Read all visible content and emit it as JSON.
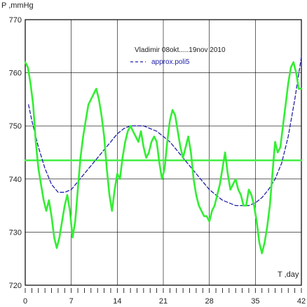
{
  "chart_data": {
    "type": "line",
    "title": "",
    "xlabel": "T ,day",
    "ylabel": "P ,mmHg",
    "xlim": [
      0,
      42
    ],
    "ylim": [
      720,
      770
    ],
    "x_ticks": [
      0,
      7,
      14,
      21,
      28,
      35,
      42
    ],
    "y_ticks": [
      720,
      730,
      740,
      750,
      760,
      770
    ],
    "grid": true,
    "legend_position": "top-right",
    "annotations": [
      "Vladimir 08okt.....19nov 2010"
    ],
    "series": [
      {
        "name": "",
        "style": "solid",
        "color": "#33ee33",
        "x": [
          0,
          0.4,
          0.8,
          1.2,
          1.6,
          2.0,
          2.4,
          2.8,
          3.2,
          3.6,
          4.0,
          4.4,
          4.8,
          5.2,
          5.6,
          6.0,
          6.4,
          6.8,
          7.2,
          7.6,
          8.0,
          8.4,
          8.8,
          9.2,
          9.6,
          10.0,
          10.4,
          10.8,
          11.2,
          11.6,
          12.0,
          12.4,
          12.8,
          13.2,
          13.6,
          14.0,
          14.4,
          14.8,
          15.2,
          15.6,
          16.0,
          16.4,
          16.8,
          17.2,
          17.6,
          18.0,
          18.4,
          18.8,
          19.2,
          19.6,
          20.0,
          20.4,
          20.8,
          21.2,
          21.6,
          22.0,
          22.4,
          22.8,
          23.2,
          23.6,
          24.0,
          24.4,
          24.8,
          25.2,
          25.6,
          26.0,
          26.4,
          26.8,
          27.2,
          27.6,
          28.0,
          28.4,
          28.8,
          29.2,
          29.6,
          30.0,
          30.4,
          30.8,
          31.2,
          31.6,
          32.0,
          32.4,
          32.8,
          33.2,
          33.6,
          34.0,
          34.4,
          34.8,
          35.2,
          35.6,
          36.0,
          36.4,
          36.8,
          37.2,
          37.6,
          38.0,
          38.4,
          38.8,
          39.2,
          39.6,
          40.0,
          40.4,
          40.8,
          41.2,
          41.6,
          42.0
        ],
        "y": [
          762,
          761,
          758,
          754,
          747,
          742,
          739,
          736,
          734,
          736,
          733,
          729,
          727,
          729,
          732,
          735,
          737,
          734,
          729,
          732,
          738,
          744,
          748,
          751,
          754,
          755,
          756,
          757,
          755,
          752,
          748,
          742,
          737,
          734,
          738,
          741,
          740,
          744,
          747,
          749,
          750,
          749,
          748,
          747,
          749,
          746,
          744,
          745,
          747,
          748,
          747,
          743,
          740,
          742,
          747,
          751,
          753,
          752,
          749,
          746,
          744,
          746,
          748,
          745,
          740,
          737,
          735,
          734,
          733,
          733,
          732,
          734,
          735,
          737,
          739,
          742,
          745,
          741,
          738,
          739,
          740,
          738,
          737,
          735,
          735,
          738,
          737,
          735,
          732,
          728,
          726,
          728,
          731,
          735,
          741,
          747,
          745,
          746,
          750,
          754,
          758,
          761,
          762,
          760,
          757,
          757
        ]
      },
      {
        "name": "approx.poli5",
        "style": "dashed",
        "color": "#2222aa",
        "x": [
          0.5,
          1,
          2,
          3,
          4,
          5,
          6,
          7,
          8,
          9,
          10,
          11,
          12,
          13,
          14,
          15,
          16,
          17,
          18,
          19,
          20,
          21,
          22,
          23,
          24,
          25,
          26,
          27,
          28,
          29,
          30,
          31,
          32,
          33,
          34,
          35,
          36,
          37,
          38,
          39,
          40,
          41,
          42
        ],
        "y": [
          754,
          751,
          746,
          742,
          739,
          737.5,
          737.5,
          738,
          739.5,
          741,
          742.5,
          744,
          745.5,
          747,
          748.5,
          749.5,
          750,
          750,
          750,
          749.5,
          749,
          748,
          747,
          745.5,
          744,
          742.5,
          741,
          739.5,
          738,
          737,
          736,
          735.5,
          735,
          735,
          735,
          735.5,
          736.5,
          738,
          740,
          743,
          748,
          755,
          763
        ]
      },
      {
        "name": "",
        "style": "solid",
        "color": "#44ee44",
        "x": [
          0,
          42
        ],
        "y": [
          743.5,
          743.5
        ]
      }
    ]
  }
}
